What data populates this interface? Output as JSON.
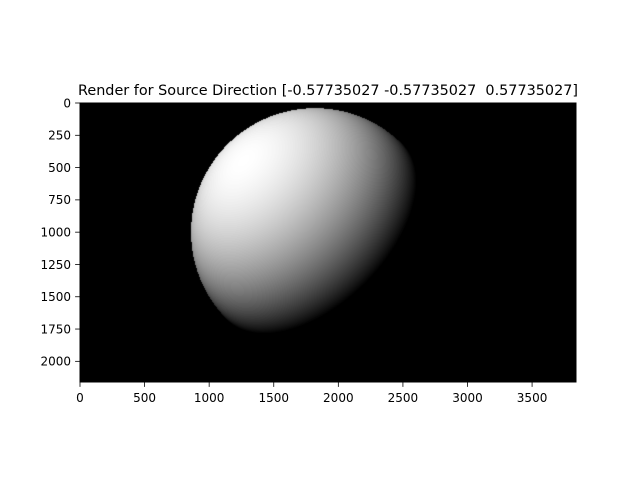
{
  "figure": {
    "title": "Render for Source Direction [-0.57735027 -0.57735027  0.57735027]",
    "background": "#000000",
    "frame_color": "#000000",
    "text_color": "#000000"
  },
  "image": {
    "width": 3840,
    "height": 2160,
    "shading": "lambertian",
    "light_direction": [
      -0.57735027,
      -0.57735027,
      0.57735027
    ],
    "object": "sphere",
    "object_center": [
      1820,
      1000
    ],
    "object_radius": 960
  },
  "axes": {
    "x_ticks": [
      {
        "value": 0,
        "label": "0"
      },
      {
        "value": 500,
        "label": "500"
      },
      {
        "value": 1000,
        "label": "1000"
      },
      {
        "value": 1500,
        "label": "1500"
      },
      {
        "value": 2000,
        "label": "2000"
      },
      {
        "value": 2500,
        "label": "2500"
      },
      {
        "value": 3000,
        "label": "3000"
      },
      {
        "value": 3500,
        "label": "3500"
      }
    ],
    "y_ticks": [
      {
        "value": 0,
        "label": "0"
      },
      {
        "value": 250,
        "label": "250"
      },
      {
        "value": 500,
        "label": "500"
      },
      {
        "value": 750,
        "label": "750"
      },
      {
        "value": 1000,
        "label": "1000"
      },
      {
        "value": 1250,
        "label": "1250"
      },
      {
        "value": 1500,
        "label": "1500"
      },
      {
        "value": 1750,
        "label": "1750"
      },
      {
        "value": 2000,
        "label": "2000"
      }
    ]
  }
}
